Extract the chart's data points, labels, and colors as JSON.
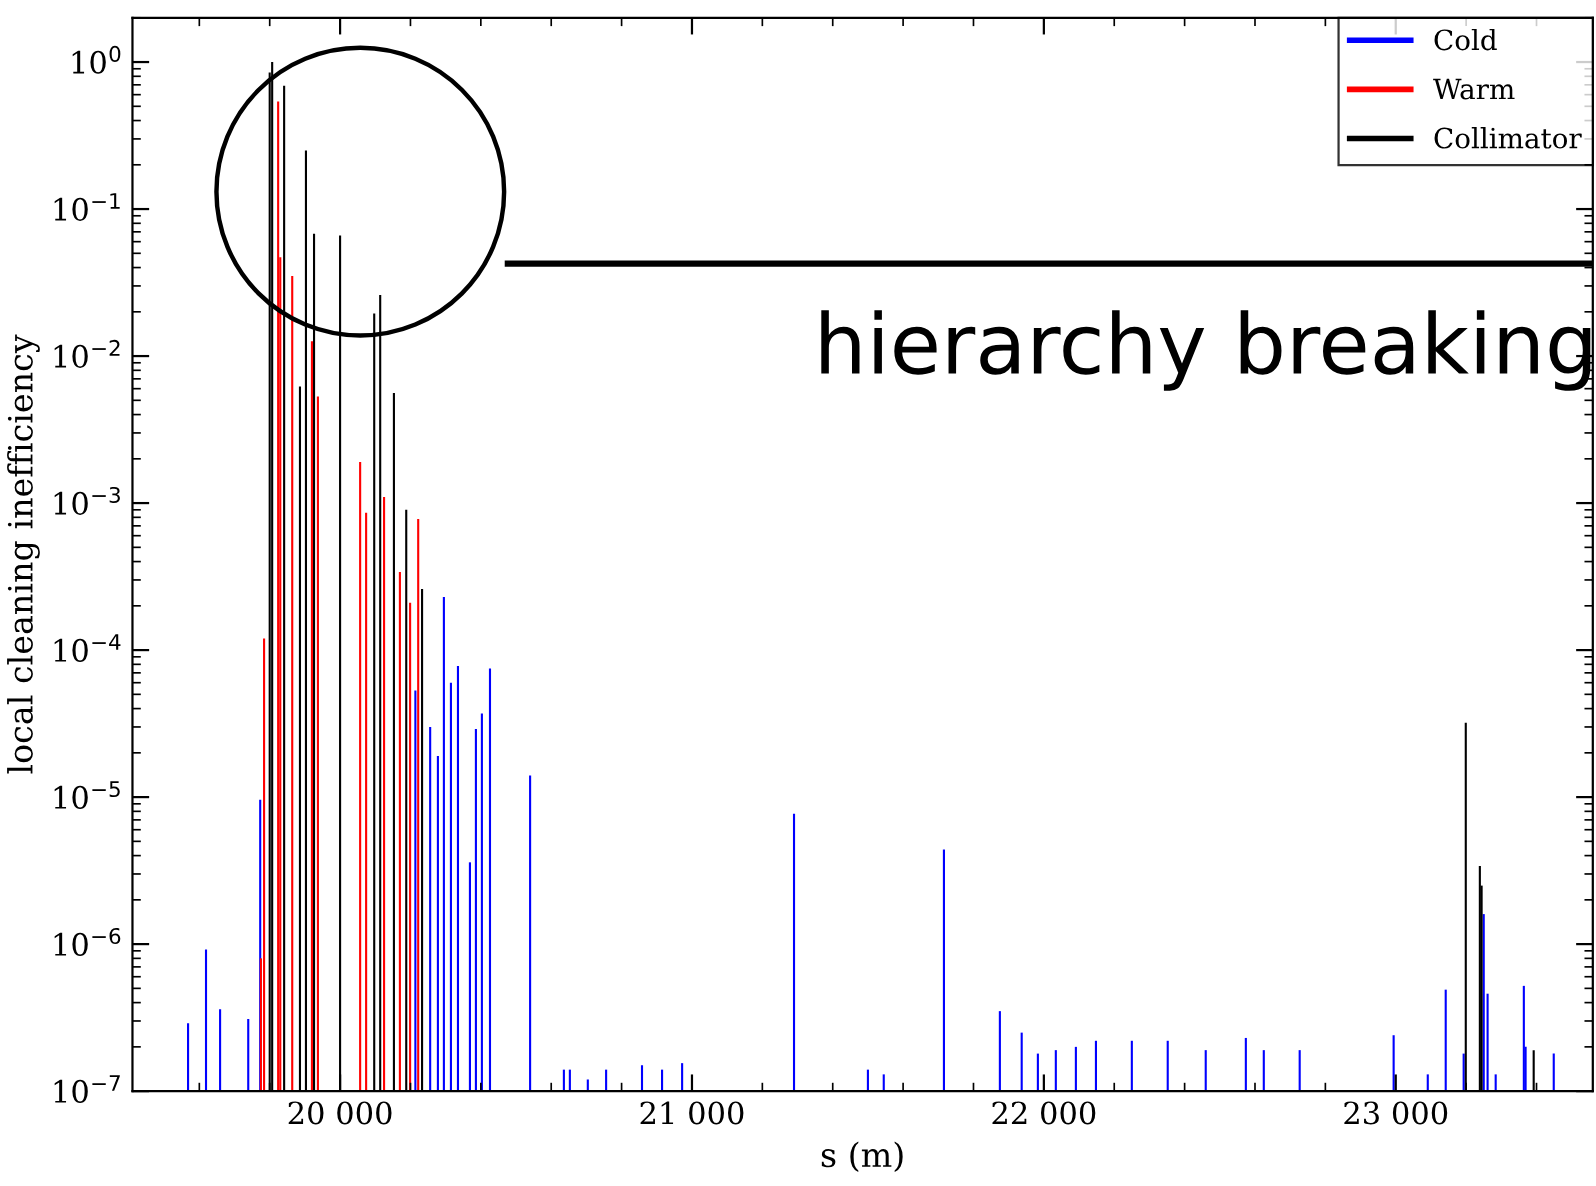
{
  "chart_data": {
    "type": "bar",
    "xlabel": "s (m)",
    "ylabel": "local cleaning inefficiency",
    "log": "y",
    "xlim": [
      19410,
      23560
    ],
    "ylim": [
      1e-07,
      2
    ],
    "xticks": [
      {
        "value": 20000,
        "label": "20 000"
      },
      {
        "value": 21000,
        "label": "21 000"
      },
      {
        "value": 22000,
        "label": "22 000"
      },
      {
        "value": 23000,
        "label": "23 000"
      }
    ],
    "yticks": [
      {
        "value": 1e-07,
        "label": "10$^{−7}$"
      },
      {
        "value": 1e-06,
        "label": "10$^{−6}$"
      },
      {
        "value": 1e-05,
        "label": "10$^{−5}$"
      },
      {
        "value": 0.0001,
        "label": "10$^{−4}$"
      },
      {
        "value": 0.001,
        "label": "10$^{−3}$"
      },
      {
        "value": 0.01,
        "label": "10$^{−2}$"
      },
      {
        "value": 0.1,
        "label": "10$^{−1}$"
      },
      {
        "value": 1,
        "label": "10$^{0}$"
      }
    ],
    "grid": false,
    "legend": "top right",
    "annotations": [
      "hierarchy breaking"
    ],
    "series": [
      {
        "name": "Cold",
        "color": "#0000ff",
        "x": [
          19568,
          19619,
          19659,
          19739,
          19773,
          20214,
          20256,
          20278,
          20295,
          20315,
          20335,
          20369,
          20386,
          20403,
          20426,
          20540,
          20636,
          20653,
          20704,
          20756,
          20858,
          20915,
          20972,
          21290,
          21500,
          21545,
          21716,
          21875,
          21937,
          21983,
          22034,
          22091,
          22148,
          22250,
          22352,
          22460,
          22574,
          22625,
          22727,
          22994,
          23091,
          23142,
          23193,
          23250,
          23261,
          23284,
          23364,
          23369,
          23449
        ],
        "values": [
          2.9e-07,
          9.2e-07,
          3.6e-07,
          3.1e-07,
          9.6e-06,
          5.3e-05,
          3e-05,
          1.9e-05,
          0.00023,
          6e-05,
          7.8e-05,
          3.6e-06,
          2.9e-05,
          3.7e-05,
          7.5e-05,
          1.4e-05,
          1.4e-07,
          1.4e-07,
          1.2e-07,
          1.4e-07,
          1.5e-07,
          1.4e-07,
          1.55e-07,
          7.7e-06,
          1.4e-07,
          1.3e-07,
          4.4e-06,
          3.5e-07,
          2.5e-07,
          1.8e-07,
          1.9e-07,
          2e-07,
          2.2e-07,
          2.2e-07,
          2.2e-07,
          1.9e-07,
          2.3e-07,
          1.9e-07,
          1.9e-07,
          2.4e-07,
          1.3e-07,
          4.9e-07,
          1.8e-07,
          1.6e-06,
          4.6e-07,
          1.3e-07,
          5.2e-07,
          2e-07,
          1.8e-07
        ]
      },
      {
        "name": "Warm",
        "color": "#ff0000",
        "x": [
          19775,
          19784,
          19824,
          19830,
          19864,
          19920,
          19937,
          20057,
          20074,
          20125,
          20170,
          20199,
          20222
        ],
        "values": [
          8e-07,
          0.00012,
          0.54,
          0.047,
          0.035,
          0.0126,
          0.0053,
          0.0019,
          0.00086,
          0.0011,
          0.00034,
          0.00021,
          0.00078
        ]
      },
      {
        "name": "Collimator",
        "color": "#000000",
        "x": [
          19800,
          19807,
          19841,
          19886,
          19903,
          19926,
          20000,
          20097,
          20114,
          20153,
          20188,
          20233,
          23199,
          23239,
          23244,
          23392
        ],
        "values": [
          0.85,
          1.0,
          0.69,
          0.0062,
          0.25,
          0.068,
          0.066,
          0.0195,
          0.026,
          0.0056,
          0.0009,
          0.00026,
          3.2e-05,
          3.4e-06,
          2.5e-06,
          1.9e-07
        ]
      }
    ]
  }
}
